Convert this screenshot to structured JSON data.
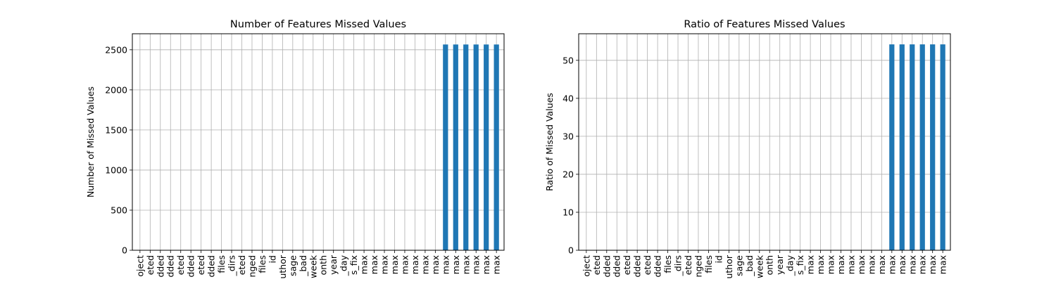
{
  "chart_data": [
    {
      "type": "bar",
      "title": "Number of Features Missed Values",
      "xlabel": "",
      "ylabel": "Number of Missed Values",
      "ylim": [
        0,
        2700
      ],
      "yticks": [
        0,
        500,
        1000,
        1500,
        2000,
        2500
      ],
      "grid": true,
      "color": "#1f77b4",
      "categories": [
        "oject",
        "eted",
        "dded",
        "dded",
        "eted",
        "dded",
        "eted",
        "dded",
        "files",
        "_dirs",
        "eted",
        "nged",
        "files",
        "id",
        "uthor",
        "sage",
        "_bad",
        "week",
        "onth",
        "year",
        "_day",
        "s_fix",
        "max",
        "max",
        "max",
        "max",
        "max",
        "max",
        "max",
        "max",
        "max",
        "max",
        "max",
        "max",
        "max",
        "max"
      ],
      "values": [
        0,
        0,
        0,
        0,
        0,
        0,
        0,
        0,
        0,
        0,
        0,
        0,
        0,
        0,
        0,
        0,
        0,
        0,
        0,
        0,
        0,
        0,
        0,
        0,
        0,
        0,
        0,
        0,
        0,
        0,
        2566,
        2566,
        2566,
        2566,
        2566,
        2566
      ]
    },
    {
      "type": "bar",
      "title": "Ratio of Features Missed Values",
      "xlabel": "",
      "ylabel": "Ratio of Missed Values",
      "ylim": [
        0,
        57
      ],
      "yticks": [
        0,
        10,
        20,
        30,
        40,
        50
      ],
      "grid": true,
      "color": "#1f77b4",
      "categories": [
        "oject",
        "eted",
        "dded",
        "dded",
        "eted",
        "dded",
        "eted",
        "dded",
        "files",
        "_dirs",
        "eted",
        "nged",
        "files",
        "id",
        "uthor",
        "sage",
        "_bad",
        "week",
        "onth",
        "year",
        "_day",
        "s_fix",
        "max",
        "max",
        "max",
        "max",
        "max",
        "max",
        "max",
        "max",
        "max",
        "max",
        "max",
        "max",
        "max",
        "max"
      ],
      "values": [
        0,
        0,
        0,
        0,
        0,
        0,
        0,
        0,
        0,
        0,
        0,
        0,
        0,
        0,
        0,
        0,
        0,
        0,
        0,
        0,
        0,
        0,
        0,
        0,
        0,
        0,
        0,
        0,
        0,
        0,
        54.2,
        54.2,
        54.2,
        54.2,
        54.2,
        54.2
      ]
    }
  ]
}
